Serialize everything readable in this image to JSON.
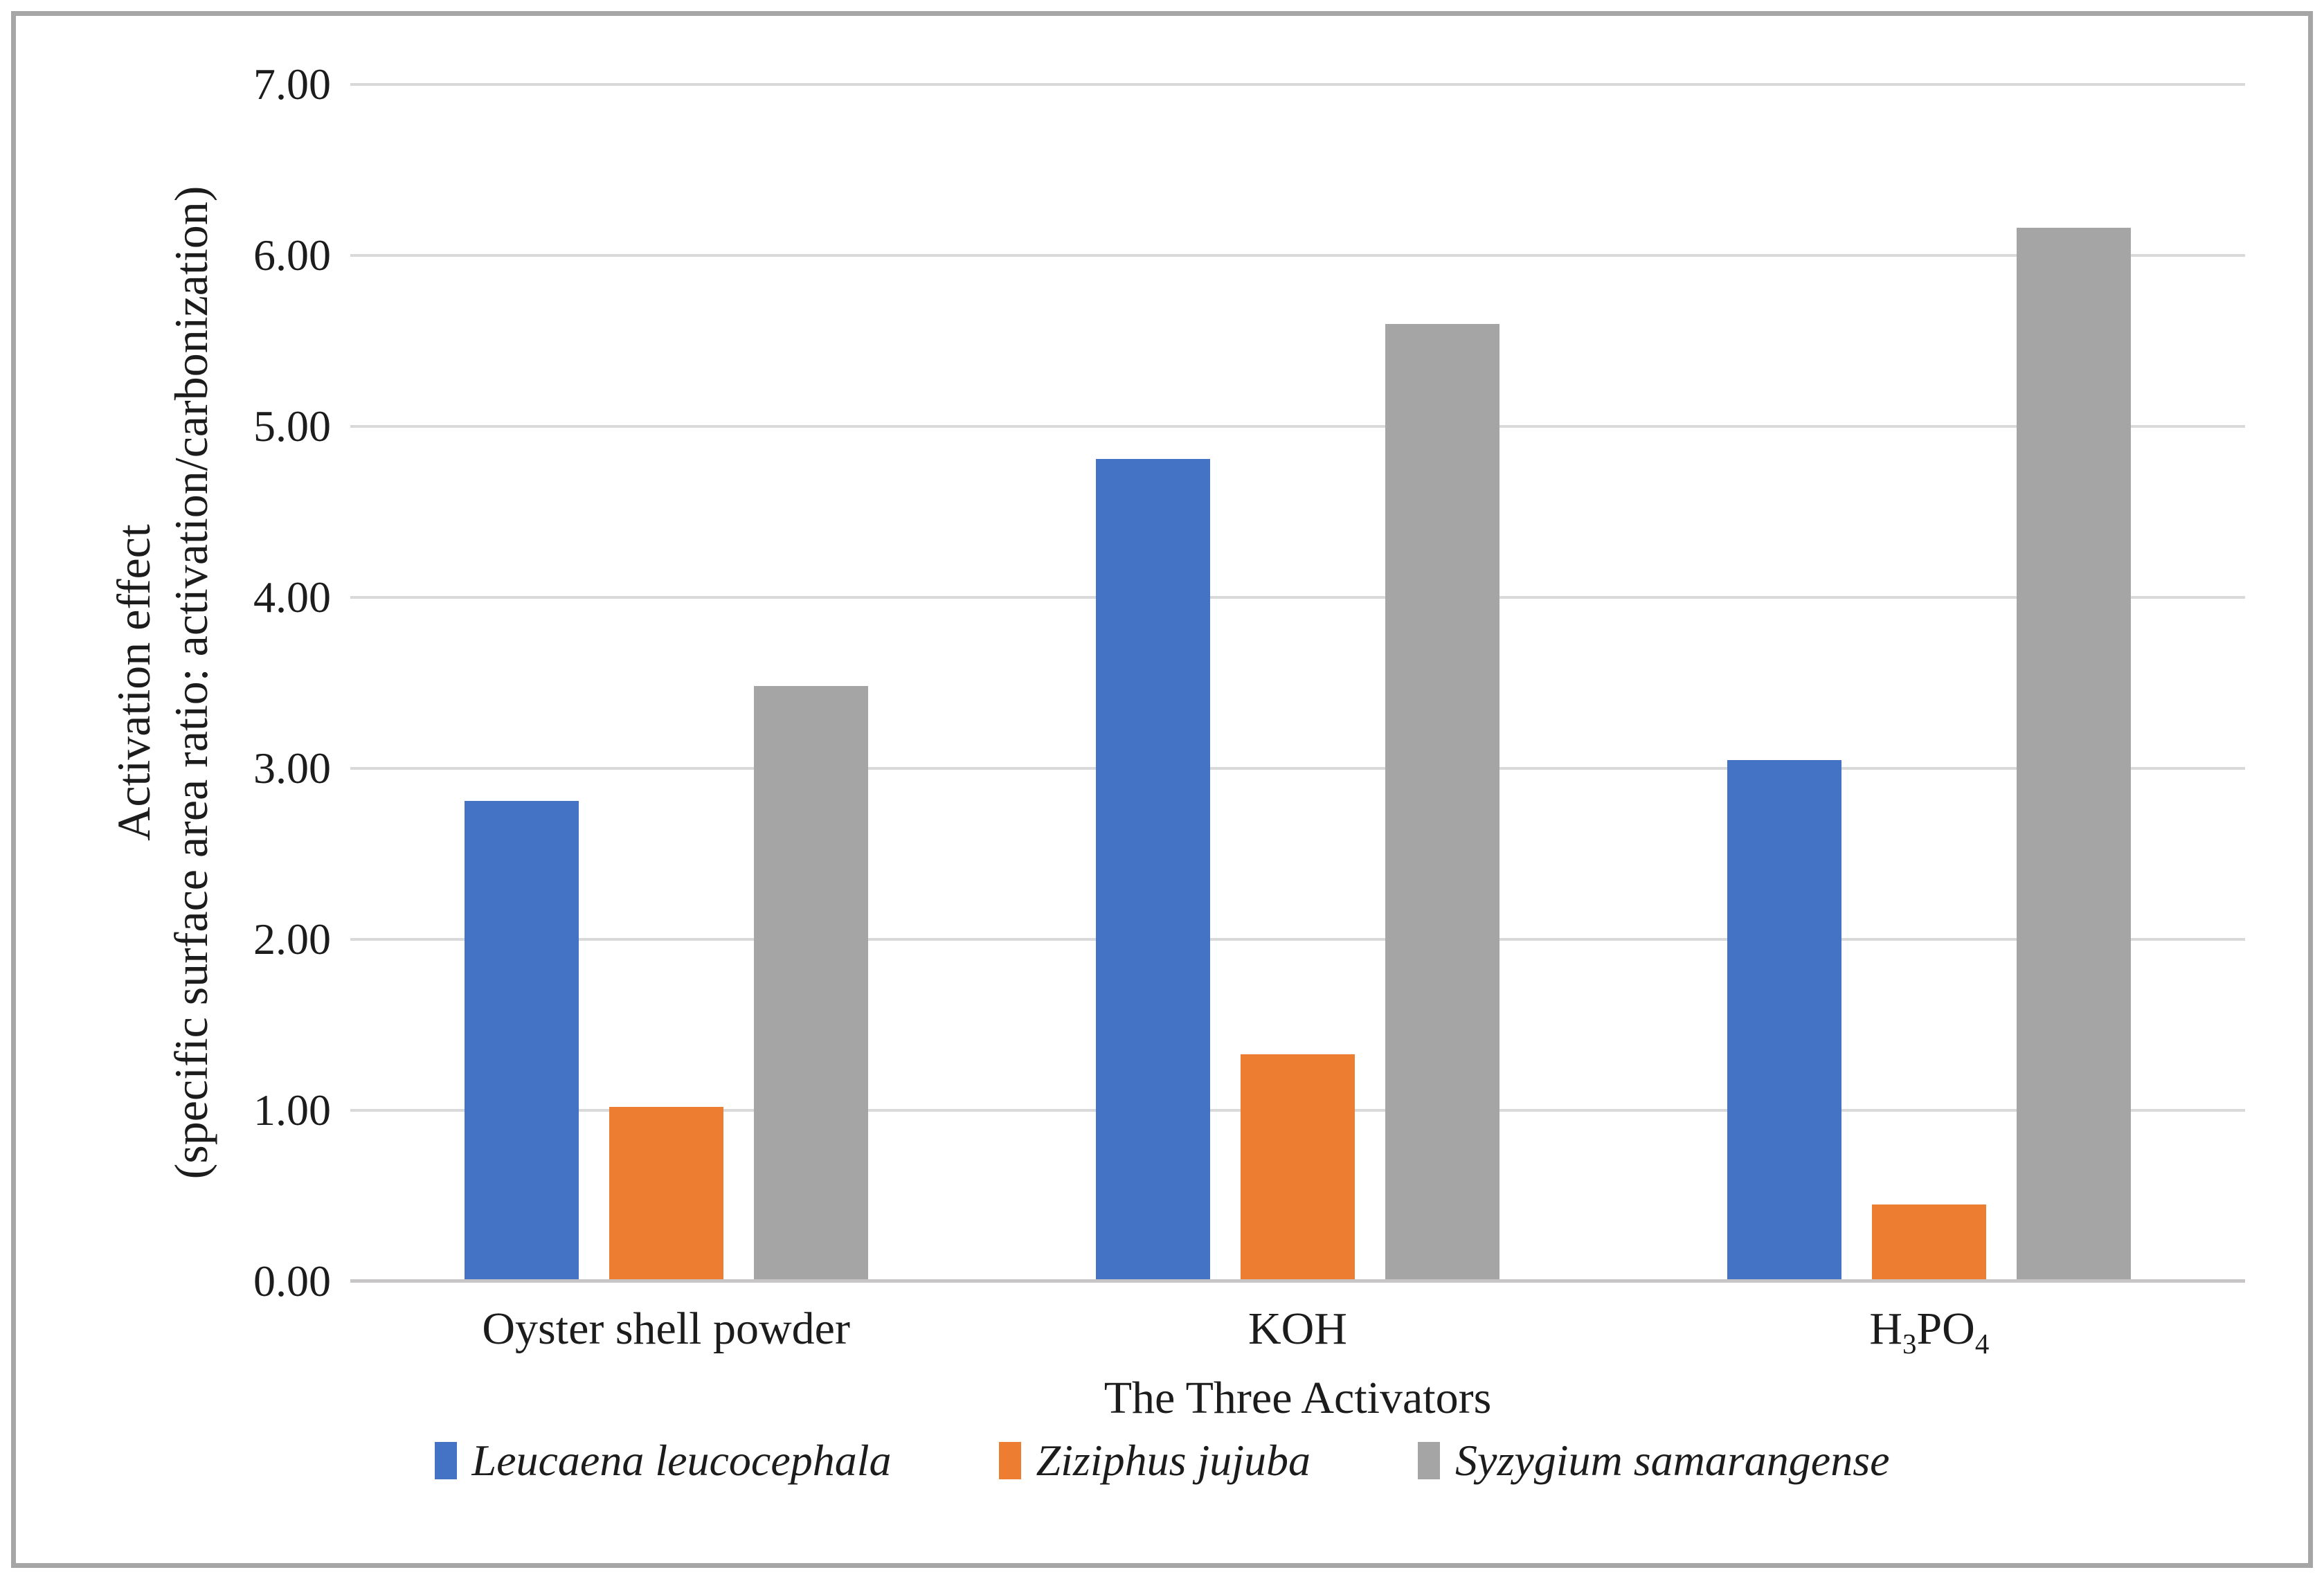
{
  "chart_data": {
    "type": "bar",
    "title": "",
    "ylabel_line1": "Activation effect",
    "ylabel_line2": "(specific surface area ratio: activation/carbonization)",
    "xlabel": "The Three Activators",
    "ylim": [
      0,
      7
    ],
    "ytick_step": 1,
    "ytick_labels": [
      "0.00",
      "1.00",
      "2.00",
      "3.00",
      "4.00",
      "5.00",
      "6.00",
      "7.00"
    ],
    "grid": "horizontal",
    "legend_position": "bottom",
    "categories": [
      {
        "label": "Oyster shell powder",
        "segments": [
          {
            "text": "Oyster shell powder",
            "sub": false
          }
        ]
      },
      {
        "label": "KOH",
        "segments": [
          {
            "text": "KOH",
            "sub": false
          }
        ]
      },
      {
        "label": "H3PO4",
        "segments": [
          {
            "text": "H",
            "sub": false
          },
          {
            "text": "3",
            "sub": true
          },
          {
            "text": "PO",
            "sub": false
          },
          {
            "text": "4",
            "sub": true
          }
        ]
      }
    ],
    "series": [
      {
        "name": "Leucaena leucocephala",
        "color": "#4472C4",
        "values": [
          2.81,
          4.81,
          3.05
        ]
      },
      {
        "name": "Ziziphus jujuba",
        "color": "#ED7D31",
        "values": [
          1.02,
          1.33,
          0.45
        ]
      },
      {
        "name": "Syzygium samarangense",
        "color": "#A5A5A5",
        "values": [
          3.48,
          5.6,
          6.16
        ]
      }
    ]
  },
  "style": {
    "background": "#ffffff",
    "border_color": "#a6a6a6",
    "gridline_color": "#d9d9d9",
    "axis_line_color": "#c7c5c5",
    "text_color": "#1c1c1c"
  }
}
